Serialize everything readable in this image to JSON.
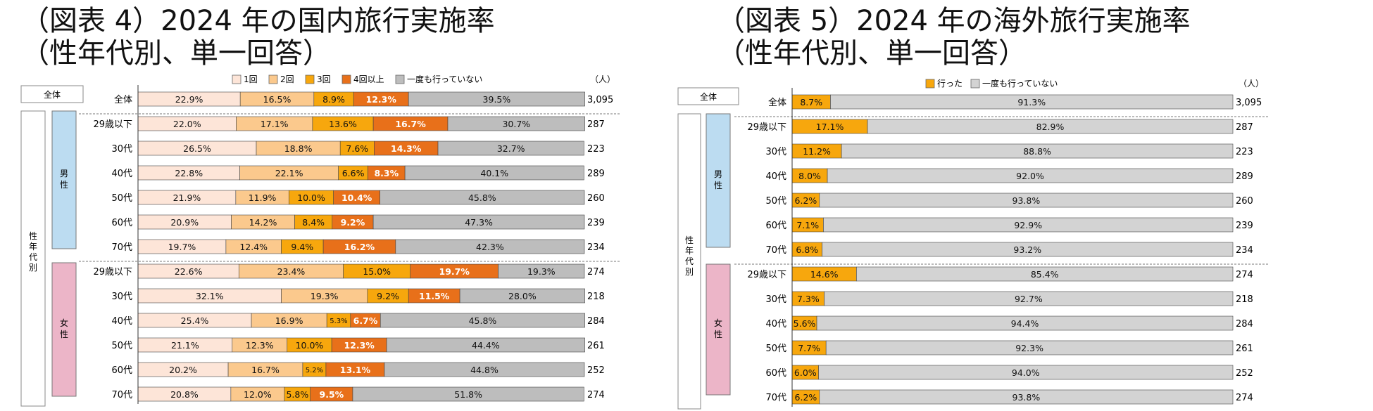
{
  "chart_data": [
    {
      "type": "bar",
      "stacked": "percent-horizontal",
      "title_line1": "（図表 4）2024 年の国内旅行実施率",
      "title_line2": "（性年代別、単一回答）",
      "legend": [
        "1回",
        "2回",
        "3回",
        "4回以上",
        "一度も行っていない"
      ],
      "colors": [
        "#fde5d8",
        "#fbc98d",
        "#f7a70d",
        "#e8701a",
        "#bdbdbd"
      ],
      "light_text_segments": [
        3
      ],
      "n_header": "（人）",
      "section_labels": {
        "total": "全体",
        "male": "男性",
        "female": "女性",
        "group": "性年代別"
      },
      "rows": [
        {
          "label": "全体",
          "group": "total",
          "n": "3,095",
          "values": [
            22.9,
            16.5,
            8.9,
            12.3,
            39.5
          ],
          "labels": [
            "22.9%",
            "16.5%",
            "8.9%",
            "12.3%",
            "39.5%"
          ]
        },
        {
          "label": "29歳以下",
          "group": "male",
          "n": "287",
          "values": [
            22.0,
            17.1,
            13.6,
            16.7,
            30.7
          ],
          "labels": [
            "22.0%",
            "17.1%",
            "13.6%",
            "16.7%",
            "30.7%"
          ]
        },
        {
          "label": "30代",
          "group": "male",
          "n": "223",
          "values": [
            26.5,
            18.8,
            7.6,
            14.3,
            32.7
          ],
          "labels": [
            "26.5%",
            "18.8%",
            "7.6%",
            "14.3%",
            "32.7%"
          ]
        },
        {
          "label": "40代",
          "group": "male",
          "n": "289",
          "values": [
            22.8,
            22.1,
            6.6,
            8.3,
            40.1
          ],
          "labels": [
            "22.8%",
            "22.1%",
            "6.6%",
            "8.3%",
            "40.1%"
          ]
        },
        {
          "label": "50代",
          "group": "male",
          "n": "260",
          "values": [
            21.9,
            11.9,
            10.0,
            10.4,
            45.8
          ],
          "labels": [
            "21.9%",
            "11.9%",
            "10.0%",
            "10.4%",
            "45.8%"
          ]
        },
        {
          "label": "60代",
          "group": "male",
          "n": "239",
          "values": [
            20.9,
            14.2,
            8.4,
            9.2,
            47.3
          ],
          "labels": [
            "20.9%",
            "14.2%",
            "8.4%",
            "9.2%",
            "47.3%"
          ]
        },
        {
          "label": "70代",
          "group": "male",
          "n": "234",
          "values": [
            19.7,
            12.4,
            9.4,
            16.2,
            42.3
          ],
          "labels": [
            "19.7%",
            "12.4%",
            "9.4%",
            "16.2%",
            "42.3%"
          ]
        },
        {
          "label": "29歳以下",
          "group": "female",
          "n": "274",
          "values": [
            22.6,
            23.4,
            15.0,
            19.7,
            19.3
          ],
          "labels": [
            "22.6%",
            "23.4%",
            "15.0%",
            "19.7%",
            "19.3%"
          ]
        },
        {
          "label": "30代",
          "group": "female",
          "n": "218",
          "values": [
            32.1,
            19.3,
            9.2,
            11.5,
            28.0
          ],
          "labels": [
            "32.1%",
            "19.3%",
            "9.2%",
            "11.5%",
            "28.0%"
          ]
        },
        {
          "label": "40代",
          "group": "female",
          "n": "284",
          "values": [
            25.4,
            16.9,
            5.3,
            6.7,
            45.8
          ],
          "labels": [
            "25.4%",
            "16.9%",
            "5.3%",
            "6.7%",
            "45.8%"
          ]
        },
        {
          "label": "50代",
          "group": "female",
          "n": "261",
          "values": [
            21.1,
            12.3,
            10.0,
            12.3,
            44.4
          ],
          "labels": [
            "21.1%",
            "12.3%",
            "10.0%",
            "12.3%",
            "44.4%"
          ]
        },
        {
          "label": "60代",
          "group": "female",
          "n": "252",
          "values": [
            20.2,
            16.7,
            5.2,
            13.1,
            44.8
          ],
          "labels": [
            "20.2%",
            "16.7%",
            "5.2%",
            "13.1%",
            "44.8%"
          ]
        },
        {
          "label": "70代",
          "group": "female",
          "n": "274",
          "values": [
            20.8,
            12.0,
            5.8,
            9.5,
            51.8
          ],
          "labels": [
            "20.8%",
            "12.0%",
            "5.8%",
            "9.5%",
            "51.8%"
          ]
        }
      ]
    },
    {
      "type": "bar",
      "stacked": "percent-horizontal",
      "title_line1": "（図表 5）2024 年の海外旅行実施率",
      "title_line2": "（性年代別、単一回答）",
      "legend": [
        "行った",
        "一度も行っていない"
      ],
      "colors": [
        "#f7a70d",
        "#d3d3d3"
      ],
      "light_text_segments": [],
      "n_header": "（人）",
      "section_labels": {
        "total": "全体",
        "male": "男性",
        "female": "女性",
        "group": "性年代別"
      },
      "rows": [
        {
          "label": "全体",
          "group": "total",
          "n": "3,095",
          "values": [
            8.7,
            91.3
          ],
          "labels": [
            "8.7%",
            "91.3%"
          ]
        },
        {
          "label": "29歳以下",
          "group": "male",
          "n": "287",
          "values": [
            17.1,
            82.9
          ],
          "labels": [
            "17.1%",
            "82.9%"
          ]
        },
        {
          "label": "30代",
          "group": "male",
          "n": "223",
          "values": [
            11.2,
            88.8
          ],
          "labels": [
            "11.2%",
            "88.8%"
          ]
        },
        {
          "label": "40代",
          "group": "male",
          "n": "289",
          "values": [
            8.0,
            92.0
          ],
          "labels": [
            "8.0%",
            "92.0%"
          ]
        },
        {
          "label": "50代",
          "group": "male",
          "n": "260",
          "values": [
            6.2,
            93.8
          ],
          "labels": [
            "6.2%",
            "93.8%"
          ]
        },
        {
          "label": "60代",
          "group": "male",
          "n": "239",
          "values": [
            7.1,
            92.9
          ],
          "labels": [
            "7.1%",
            "92.9%"
          ]
        },
        {
          "label": "70代",
          "group": "male",
          "n": "234",
          "values": [
            6.8,
            93.2
          ],
          "labels": [
            "6.8%",
            "93.2%"
          ]
        },
        {
          "label": "29歳以下",
          "group": "female",
          "n": "274",
          "values": [
            14.6,
            85.4
          ],
          "labels": [
            "14.6%",
            "85.4%"
          ]
        },
        {
          "label": "30代",
          "group": "female",
          "n": "218",
          "values": [
            7.3,
            92.7
          ],
          "labels": [
            "7.3%",
            "92.7%"
          ]
        },
        {
          "label": "40代",
          "group": "female",
          "n": "284",
          "values": [
            5.6,
            94.4
          ],
          "labels": [
            "5.6%",
            "94.4%"
          ]
        },
        {
          "label": "50代",
          "group": "female",
          "n": "261",
          "values": [
            7.7,
            92.3
          ],
          "labels": [
            "7.7%",
            "92.3%"
          ]
        },
        {
          "label": "60代",
          "group": "female",
          "n": "252",
          "values": [
            6.0,
            94.0
          ],
          "labels": [
            "6.0%",
            "94.0%"
          ]
        },
        {
          "label": "70代",
          "group": "female",
          "n": "274",
          "values": [
            6.2,
            93.8
          ],
          "labels": [
            "6.2%",
            "93.8%"
          ]
        }
      ]
    }
  ]
}
